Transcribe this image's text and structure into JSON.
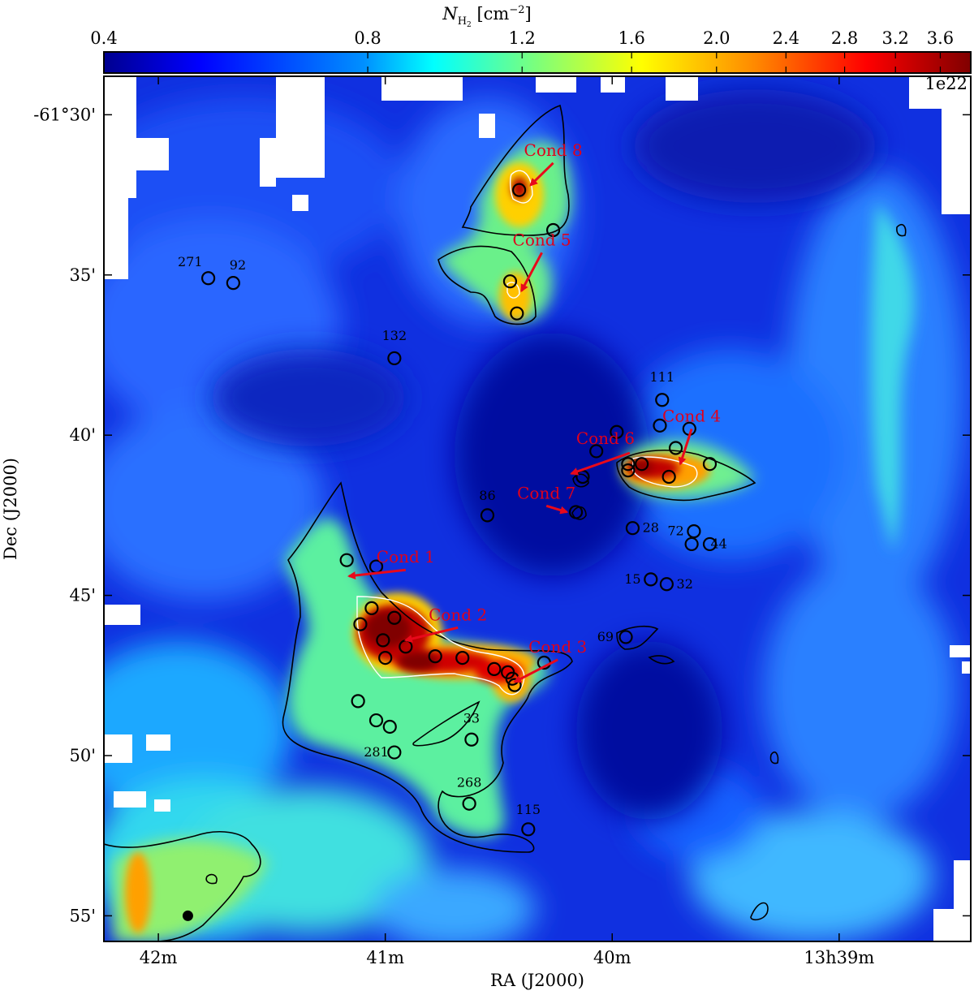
{
  "chart_data": {
    "type": "heatmap",
    "title": "",
    "colorbar": {
      "label_main": "N",
      "label_sub": "H",
      "label_sub2": "2",
      "label_unit": " [cm",
      "label_exp": "−2",
      "label_close": "]",
      "ticks": [
        "0.4",
        "0.8",
        "1.2",
        "1.6",
        "2.0",
        "2.4",
        "2.8",
        "3.2",
        "3.6"
      ],
      "tick_values": [
        0.4,
        0.8,
        1.2,
        1.6,
        2.0,
        2.4,
        2.8,
        3.2,
        3.6
      ],
      "range": [
        0.4,
        3.9
      ],
      "scale": "log",
      "multiplier": "1e22",
      "colormap": "jet"
    },
    "xlabel": "RA (J2000)",
    "ylabel": "Dec (J2000)",
    "x_ticks": [
      "42m",
      "41m",
      "40m",
      "13h39m"
    ],
    "x_tick_values_min": [
      42,
      41,
      40,
      39
    ],
    "x_range_min": [
      42.24,
      38.42
    ],
    "y_ticks": [
      "-61°30'",
      "35'",
      "40'",
      "45'",
      "50'",
      "55'"
    ],
    "y_tick_values_arcmin": [
      30,
      35,
      40,
      45,
      50,
      55
    ],
    "y_range_arcmin": [
      28.8,
      55.8
    ],
    "condensations": [
      {
        "name": "Cond 1",
        "text_x": 40.91,
        "text_y": 43.8,
        "arrow_to": [
          41.16,
          44.4
        ]
      },
      {
        "name": "Cond 2",
        "text_x": 40.68,
        "text_y": 45.6,
        "arrow_to": [
          40.91,
          46.4
        ]
      },
      {
        "name": "Cond 3",
        "text_x": 40.24,
        "text_y": 46.6,
        "arrow_to": [
          40.43,
          47.7
        ]
      },
      {
        "name": "Cond 4",
        "text_x": 39.65,
        "text_y": 39.4,
        "arrow_to": [
          39.7,
          40.9
        ]
      },
      {
        "name": "Cond 5",
        "text_x": 40.31,
        "text_y": 33.9,
        "arrow_to": [
          40.4,
          35.5
        ]
      },
      {
        "name": "Cond 6",
        "text_x": 40.03,
        "text_y": 40.1,
        "arrow_to": [
          40.18,
          41.2
        ]
      },
      {
        "name": "Cond 7",
        "text_x": 40.29,
        "text_y": 41.8,
        "arrow_to": [
          40.2,
          42.4
        ]
      },
      {
        "name": "Cond 8",
        "text_x": 40.26,
        "text_y": 31.1,
        "arrow_to": [
          40.36,
          32.2
        ]
      }
    ],
    "labeled_sources": [
      {
        "id": "271",
        "ra": 41.78,
        "dec": 35.1,
        "lx": 41.86,
        "ly": 34.6
      },
      {
        "id": "92",
        "ra": 41.67,
        "dec": 35.25,
        "lx": 41.65,
        "ly": 34.7
      },
      {
        "id": "132",
        "ra": 40.96,
        "dec": 37.6,
        "lx": 40.96,
        "ly": 36.9
      },
      {
        "id": "111",
        "ra": 39.78,
        "dec": 38.9,
        "lx": 39.78,
        "ly": 38.2
      },
      {
        "id": "86",
        "ra": 40.55,
        "dec": 42.5,
        "lx": 40.55,
        "ly": 41.9
      },
      {
        "id": "28",
        "ra": 39.91,
        "dec": 42.9,
        "lx": 39.83,
        "ly": 42.9
      },
      {
        "id": "72",
        "ra": 39.64,
        "dec": 43.0,
        "lx": 39.72,
        "ly": 43.0
      },
      {
        "id": "44",
        "ra": 39.57,
        "dec": 43.4,
        "lx": 39.53,
        "ly": 43.4
      },
      {
        "id": "15",
        "ra": 39.83,
        "dec": 44.5,
        "lx": 39.91,
        "ly": 44.5
      },
      {
        "id": "32",
        "ra": 39.76,
        "dec": 44.65,
        "lx": 39.68,
        "ly": 44.65
      },
      {
        "id": "69",
        "ra": 39.94,
        "dec": 46.3,
        "lx": 40.03,
        "ly": 46.3
      },
      {
        "id": "33",
        "ra": 40.62,
        "dec": 49.5,
        "lx": 40.62,
        "ly": 48.85
      },
      {
        "id": "281",
        "ra": 40.96,
        "dec": 49.9,
        "lx": 41.04,
        "ly": 49.9
      },
      {
        "id": "268",
        "ra": 40.63,
        "dec": 51.5,
        "lx": 40.63,
        "ly": 50.85
      },
      {
        "id": "115",
        "ra": 40.37,
        "dec": 52.3,
        "lx": 40.37,
        "ly": 51.7
      }
    ],
    "unlabeled_sources": [
      {
        "ra": 41.17,
        "dec": 43.9
      },
      {
        "ra": 41.04,
        "dec": 44.1
      },
      {
        "ra": 41.06,
        "dec": 45.4
      },
      {
        "ra": 40.96,
        "dec": 45.7
      },
      {
        "ra": 41.11,
        "dec": 45.9
      },
      {
        "ra": 41.01,
        "dec": 46.4
      },
      {
        "ra": 40.91,
        "dec": 46.6
      },
      {
        "ra": 41.0,
        "dec": 46.95
      },
      {
        "ra": 40.78,
        "dec": 46.9
      },
      {
        "ra": 40.66,
        "dec": 46.95
      },
      {
        "ra": 40.52,
        "dec": 47.3
      },
      {
        "ra": 40.46,
        "dec": 47.4
      },
      {
        "ra": 40.44,
        "dec": 47.6
      },
      {
        "ra": 40.43,
        "dec": 47.8
      },
      {
        "ra": 40.3,
        "dec": 47.1
      },
      {
        "ra": 41.12,
        "dec": 48.3
      },
      {
        "ra": 41.04,
        "dec": 48.9
      },
      {
        "ra": 40.98,
        "dec": 49.1
      },
      {
        "ra": 40.41,
        "dec": 32.35
      },
      {
        "ra": 40.26,
        "dec": 33.6
      },
      {
        "ra": 40.45,
        "dec": 35.2
      },
      {
        "ra": 40.42,
        "dec": 36.2
      },
      {
        "ra": 40.13,
        "dec": 41.3
      },
      {
        "ra": 40.16,
        "dec": 42.4
      },
      {
        "ra": 40.07,
        "dec": 40.5
      },
      {
        "ra": 39.98,
        "dec": 39.9
      },
      {
        "ra": 39.93,
        "dec": 40.9
      },
      {
        "ra": 39.87,
        "dec": 40.9
      },
      {
        "ra": 39.93,
        "dec": 41.1
      },
      {
        "ra": 39.79,
        "dec": 39.7
      },
      {
        "ra": 39.72,
        "dec": 40.4
      },
      {
        "ra": 39.66,
        "dec": 39.8
      },
      {
        "ra": 39.57,
        "dec": 40.9
      },
      {
        "ra": 39.75,
        "dec": 41.3
      },
      {
        "ra": 39.65,
        "dec": 43.4
      }
    ],
    "filled_source": {
      "ra": 41.87,
      "dec": 55.0
    }
  },
  "colors": {
    "cond_text": "#e0001b",
    "arrow": "#e8091b",
    "contour_outer": "#000000",
    "contour_inner": "#ffffff"
  }
}
